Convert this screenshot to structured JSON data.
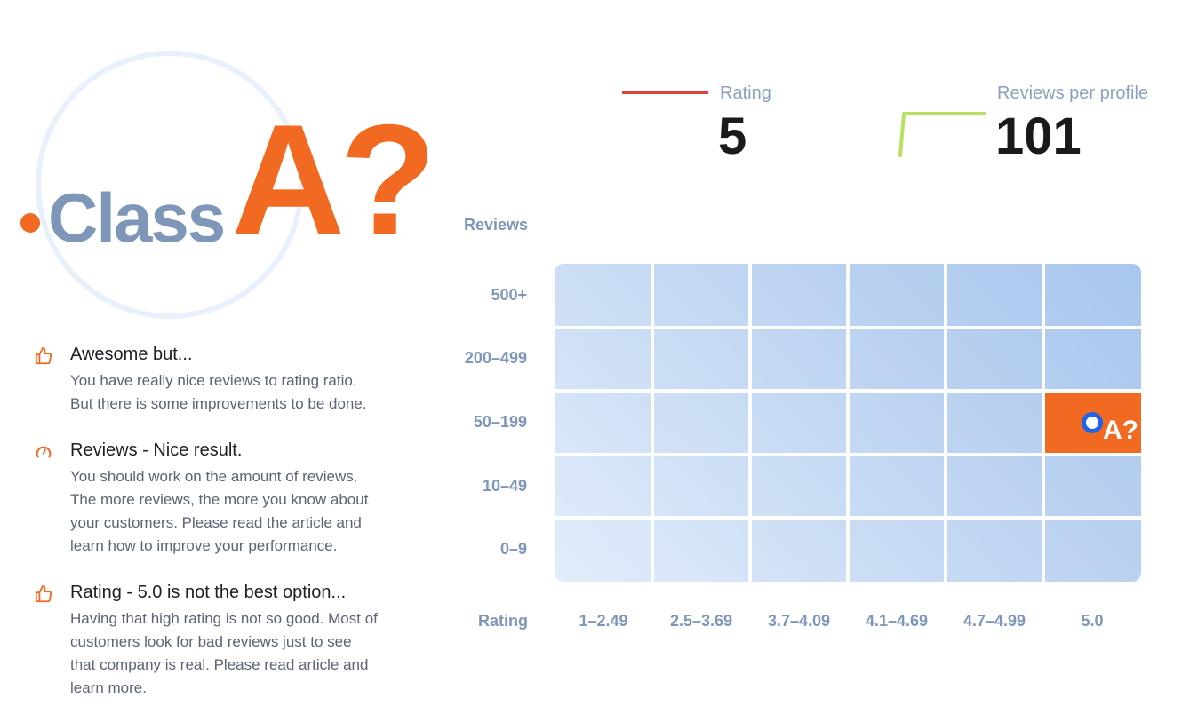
{
  "header": {
    "class_word": "Class",
    "class_grade": "A?"
  },
  "feedback": [
    {
      "icon": "thumbs-up-icon",
      "title": "Awesome but...",
      "body": [
        "You have really nice reviews to rating ratio.",
        "But there is some improvements to be done."
      ]
    },
    {
      "icon": "gauge-icon",
      "title": "Reviews - Nice result.",
      "body": [
        "You should work on the amount of reviews.",
        "The more reviews, the more you know about",
        "your customers. Please read the article and",
        "learn how to improve your performance."
      ]
    },
    {
      "icon": "thumbs-up-icon",
      "title": "Rating - 5.0 is not the best option...",
      "body": [
        "Having that high rating is not so good. Most of",
        "customers look for bad reviews just to see",
        "that company is real. Please read article and",
        "learn more."
      ]
    }
  ],
  "stats": {
    "rating": {
      "label": "Rating",
      "value": "5",
      "color": "#e0413a"
    },
    "reviews_per_profile": {
      "label": "Reviews per profile",
      "value": "101",
      "color": "#b8e063"
    }
  },
  "colors": {
    "accent": "#f26a21",
    "marker": "#1f63e6",
    "axis_text": "#7e96b8"
  },
  "chart_data": {
    "type": "heatmap",
    "xlabel": "Rating",
    "ylabel": "Reviews",
    "x_categories": [
      "1-2.49",
      "2.5-3.69",
      "3.7-4.09",
      "4.1-4.69",
      "4.7-4.99",
      "5.0"
    ],
    "y_categories": [
      "500+",
      "200-499",
      "50-199",
      "10-49",
      "0-9"
    ],
    "highlight": {
      "x": "5.0",
      "y": "50-199",
      "label": "A?"
    },
    "current": {
      "rating": 5,
      "reviews_per_profile": 101
    }
  }
}
